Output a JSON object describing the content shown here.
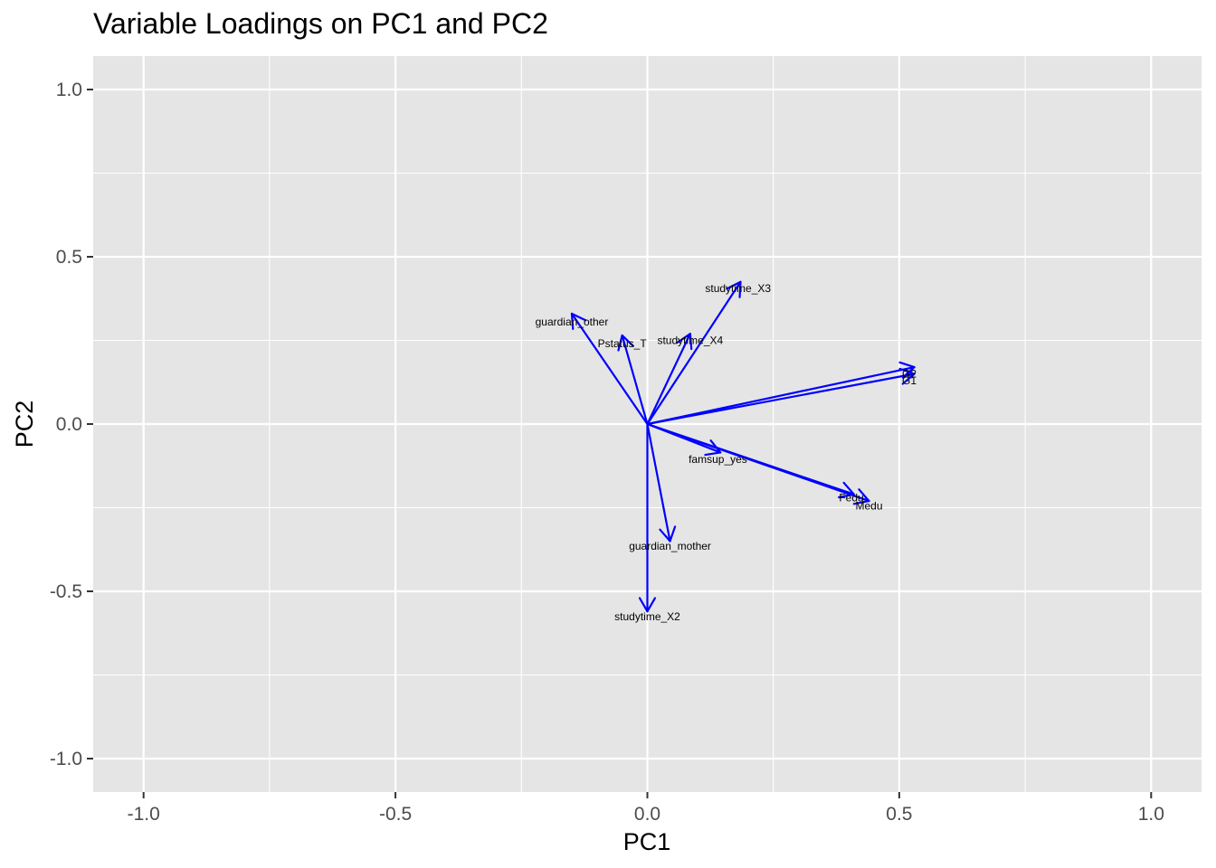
{
  "chart_data": {
    "type": "biplot-loadings",
    "title": "Variable Loadings on PC1 and PC2",
    "xlabel": "PC1",
    "ylabel": "PC2",
    "xlim": [
      -1.1,
      1.1
    ],
    "ylim": [
      -1.1,
      1.1
    ],
    "x_ticks": [
      "-1.0",
      "-0.5",
      "0.0",
      "0.5",
      "1.0"
    ],
    "y_ticks": [
      "1.0",
      "0.5",
      "0.0",
      "-0.5",
      "-1.0"
    ],
    "x_tick_values": [
      -1.0,
      -0.5,
      0.0,
      0.5,
      1.0
    ],
    "y_tick_values": [
      1.0,
      0.5,
      0.0,
      -0.5,
      -1.0
    ],
    "grid": true,
    "arrow_color": "#0000ff",
    "panel_background": "#e5e5e5",
    "vectors": [
      {
        "name": "G2",
        "x": 0.53,
        "y": 0.17,
        "label_x": 0.52,
        "label_y": 0.15
      },
      {
        "name": "G1",
        "x": 0.53,
        "y": 0.15,
        "label_x": 0.52,
        "label_y": 0.13
      },
      {
        "name": "Fedu",
        "x": 0.41,
        "y": -0.21,
        "label_x": 0.405,
        "label_y": -0.22
      },
      {
        "name": "Medu",
        "x": 0.44,
        "y": -0.23,
        "label_x": 0.44,
        "label_y": -0.245
      },
      {
        "name": "famsup_yes",
        "x": 0.145,
        "y": -0.085,
        "label_x": 0.14,
        "label_y": -0.105
      },
      {
        "name": "studytime_X3",
        "x": 0.185,
        "y": 0.425,
        "label_x": 0.18,
        "label_y": 0.405
      },
      {
        "name": "studytime_X4",
        "x": 0.085,
        "y": 0.27,
        "label_x": 0.085,
        "label_y": 0.25
      },
      {
        "name": "Pstatus_T",
        "x": -0.05,
        "y": 0.265,
        "label_x": -0.05,
        "label_y": 0.24
      },
      {
        "name": "guardian_other",
        "x": -0.15,
        "y": 0.33,
        "label_x": -0.15,
        "label_y": 0.305
      },
      {
        "name": "guardian_mother",
        "x": 0.045,
        "y": -0.35,
        "label_x": 0.045,
        "label_y": -0.365
      },
      {
        "name": "studytime_X2",
        "x": 0.0,
        "y": -0.56,
        "label_x": 0.0,
        "label_y": -0.575
      }
    ]
  }
}
